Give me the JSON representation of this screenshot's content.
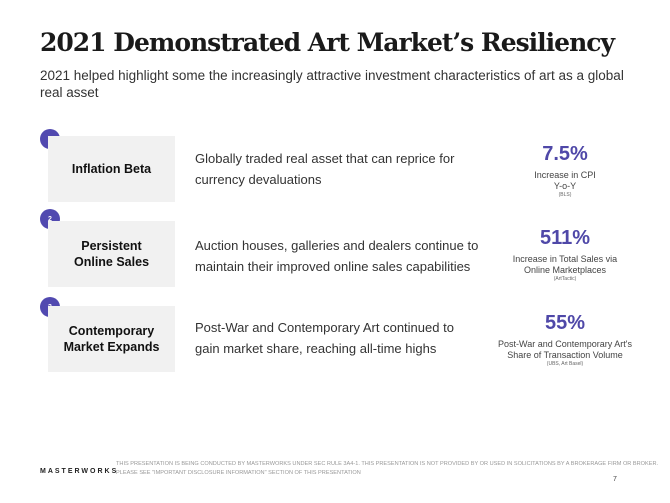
{
  "title": "2021 Demonstrated Art Market’s Resiliency",
  "subtitle": "2021 helped highlight some the increasingly attractive investment characteristics of art as a global real asset",
  "rows": [
    {
      "number": "1",
      "label": "Inflation Beta",
      "description": "Globally traded real asset that can reprice for currency devaluations",
      "stat": "7.5%",
      "caption": "Increase in CPI Y-o-Y",
      "source": "(BLS)"
    },
    {
      "number": "2",
      "label": "Persistent Online Sales",
      "description": "Auction houses, galleries and dealers continue to maintain their improved online sales capabilities",
      "stat": "511%",
      "caption": "Increase in Total Sales via Online Marketplaces",
      "source": "(ArtTactic)"
    },
    {
      "number": "3",
      "label": "Contemporary Market Expands",
      "description": "Post-War and Contemporary Art continued to gain market share, reaching all-time highs",
      "stat": "55%",
      "caption": "Post-War and Contemporary Art's Share of Transaction Volume",
      "source": "(UBS, Art Basel)"
    }
  ],
  "footer": {
    "logo": "MASTERWORKS",
    "disclaimer": "THIS PRESENTATION IS BEING CONDUCTED BY MASTERWORKS UNDER SEC RULE 3A4-1. THIS PRESENTATION IS NOT PROVIDED BY OR USED IN SOLICITATIONS BY A BROKERAGE FIRM OR BROKER. PLEASE SEE \"IMPORTANT DISCLOSURE INFORMATION\" SECTION OF THIS PRESENTATION",
    "page": "7"
  },
  "colors": {
    "accent": "#5149b0",
    "box": "#f1f1f1"
  }
}
